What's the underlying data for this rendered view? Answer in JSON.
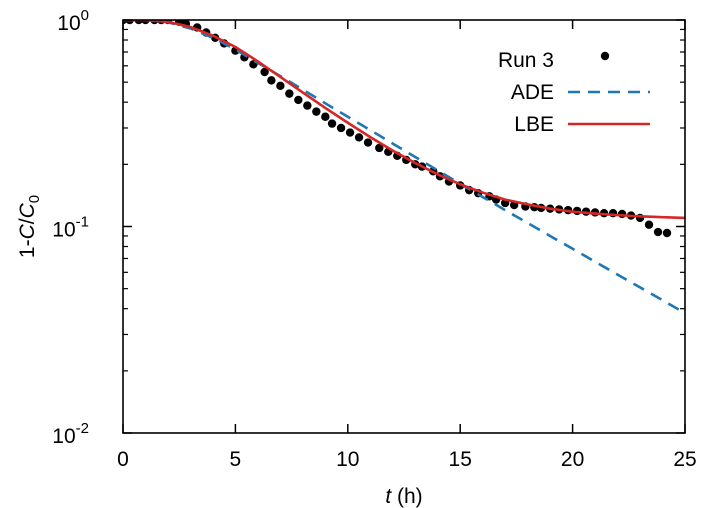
{
  "chart_data": {
    "type": "line",
    "title": "",
    "xlabel": {
      "var": "t",
      "rest": " (h)"
    },
    "ylabel": {
      "prefix": "1-",
      "var1": "C",
      "slash": "/",
      "var2": "C",
      "sub": "0"
    },
    "xlim": [
      0,
      25
    ],
    "ylim": [
      0.01,
      1
    ],
    "yscale": "log",
    "grid": false,
    "legend": "top-right",
    "x_ticks": [
      {
        "value": 0,
        "label": "0"
      },
      {
        "value": 5,
        "label": "5"
      },
      {
        "value": 10,
        "label": "10"
      },
      {
        "value": 15,
        "label": "15"
      },
      {
        "value": 20,
        "label": "20"
      },
      {
        "value": 25,
        "label": "25"
      }
    ],
    "y_ticks": [
      {
        "value": 1,
        "base": "10",
        "exp": "0"
      },
      {
        "value": 0.1,
        "base": "10",
        "exp": "-1"
      },
      {
        "value": 0.01,
        "base": "10",
        "exp": "-2"
      }
    ],
    "series": [
      {
        "name": "Run 3",
        "style": "points",
        "color": "#000000",
        "x": [
          0.0,
          0.3,
          0.7,
          1.0,
          1.4,
          1.7,
          2.0,
          2.5,
          2.8,
          3.3,
          3.7,
          4.1,
          4.5,
          5.0,
          5.4,
          5.8,
          6.3,
          6.6,
          7.0,
          7.4,
          7.8,
          8.2,
          8.6,
          9.0,
          9.3,
          9.7,
          10.1,
          10.5,
          10.9,
          11.4,
          11.8,
          12.2,
          12.6,
          13.0,
          13.3,
          13.8,
          14.1,
          14.5,
          15.0,
          15.4,
          15.8,
          16.3,
          16.6,
          17.0,
          17.4,
          17.9,
          18.3,
          18.6,
          19.0,
          19.4,
          19.8,
          20.2,
          20.6,
          21.0,
          21.4,
          21.8,
          22.2,
          22.6,
          23.0,
          23.4,
          23.8,
          24.2
        ],
        "y": [
          1.0,
          1.0,
          1.0,
          1.0,
          1.0,
          1.0,
          1.0,
          0.98,
          0.96,
          0.92,
          0.87,
          0.82,
          0.77,
          0.71,
          0.66,
          0.61,
          0.56,
          0.51,
          0.48,
          0.44,
          0.41,
          0.385,
          0.36,
          0.34,
          0.315,
          0.3,
          0.285,
          0.27,
          0.255,
          0.24,
          0.23,
          0.22,
          0.21,
          0.2,
          0.195,
          0.185,
          0.175,
          0.165,
          0.158,
          0.15,
          0.145,
          0.14,
          0.135,
          0.13,
          0.127,
          0.125,
          0.124,
          0.123,
          0.122,
          0.121,
          0.12,
          0.119,
          0.118,
          0.117,
          0.116,
          0.116,
          0.115,
          0.113,
          0.11,
          0.102,
          0.094,
          0.093
        ]
      },
      {
        "name": "ADE",
        "style": "dashed",
        "color": "#1f77b4",
        "x": [
          0,
          1,
          2,
          3,
          4,
          5,
          6,
          7,
          8,
          9,
          10,
          11,
          12,
          13,
          14,
          15,
          16,
          17,
          18,
          19,
          20,
          21,
          22,
          23,
          24,
          25
        ],
        "y": [
          1.0,
          1.0,
          0.975,
          0.91,
          0.82,
          0.72,
          0.62,
          0.535,
          0.46,
          0.395,
          0.34,
          0.293,
          0.252,
          0.217,
          0.187,
          0.161,
          0.139,
          0.12,
          0.104,
          0.09,
          0.078,
          0.0675,
          0.0585,
          0.0507,
          0.044,
          0.038
        ]
      },
      {
        "name": "LBE",
        "style": "solid",
        "color": "#d62728",
        "x": [
          0,
          1,
          2,
          3,
          4,
          5,
          6,
          7,
          8,
          9,
          10,
          11,
          12,
          13,
          14,
          15,
          16,
          17,
          18,
          19,
          20,
          21,
          22,
          23,
          24,
          25
        ],
        "y": [
          1.0,
          1.0,
          0.98,
          0.925,
          0.84,
          0.74,
          0.63,
          0.53,
          0.445,
          0.375,
          0.318,
          0.271,
          0.233,
          0.203,
          0.179,
          0.16,
          0.146,
          0.135,
          0.128,
          0.122,
          0.118,
          0.1155,
          0.1135,
          0.112,
          0.111,
          0.11
        ]
      }
    ]
  }
}
